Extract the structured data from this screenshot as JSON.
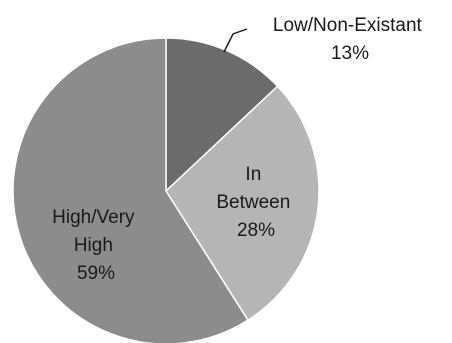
{
  "chart_data": {
    "type": "pie",
    "title": "",
    "slices": [
      {
        "label": "Low/Non-Existant",
        "value": 13,
        "value_label": "13%",
        "color": "#6b6b6b"
      },
      {
        "label": "In Between",
        "value": 28,
        "value_label": "28%",
        "color": "#b5b5b5"
      },
      {
        "label": "High/Very High",
        "value": 59,
        "value_label": "59%",
        "color": "#8c8c8c"
      }
    ],
    "start_angle_deg": 0,
    "direction": "clockwise",
    "border_color": "#ffffff",
    "legend": "none"
  }
}
